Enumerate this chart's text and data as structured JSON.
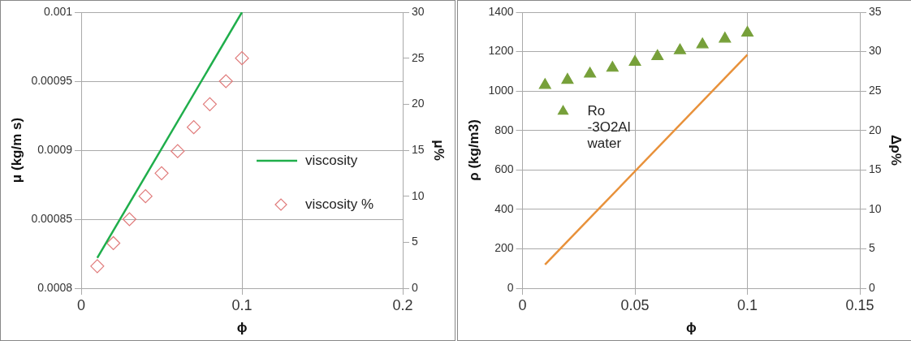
{
  "chart_data": [
    {
      "type": "scatter",
      "xlabel": "ϕ",
      "ylabel": "μ (kg/m s)",
      "y2label": "μ%",
      "xlim": [
        0,
        0.2
      ],
      "xticks": [
        0,
        0.1,
        0.2
      ],
      "ylim": [
        0.0008,
        0.001
      ],
      "yticks": [
        0.0008,
        0.00085,
        0.0009,
        0.00095,
        0.001
      ],
      "y2lim": [
        0,
        30
      ],
      "y2ticks": [
        0,
        5,
        10,
        15,
        20,
        25,
        30
      ],
      "grid": true,
      "legend": "right",
      "series": [
        {
          "name": "viscosity",
          "type": "line",
          "color": "#1fae4b",
          "marker": "none",
          "x": [
            0.01,
            0.1
          ],
          "values": [
            0.000822,
            0.001
          ]
        },
        {
          "name": "viscosity %",
          "type": "scatter",
          "color": "#e07a7a",
          "marker": "diamond",
          "axis": "y2",
          "x": [
            0.01,
            0.02,
            0.03,
            0.04,
            0.05,
            0.06,
            0.07,
            0.08,
            0.09,
            0.1
          ],
          "values": [
            2.4,
            4.9,
            7.5,
            10,
            12.5,
            14.9,
            17.5,
            20,
            22.5,
            25
          ]
        }
      ]
    },
    {
      "type": "scatter",
      "xlabel": "ϕ",
      "ylabel": "ρ (kg/m3)",
      "y2label": "Δρ%",
      "xlim": [
        0,
        0.15
      ],
      "xticks": [
        0,
        0.05,
        0.1,
        0.15
      ],
      "ylim": [
        0,
        1400
      ],
      "yticks": [
        0,
        200,
        400,
        600,
        800,
        1000,
        1200,
        1400
      ],
      "y2lim": [
        0,
        35
      ],
      "y2ticks": [
        0,
        5,
        10,
        15,
        20,
        25,
        30,
        35
      ],
      "grid": true,
      "legend": "top left",
      "series": [
        {
          "name": "Ro -3O2Al water",
          "type": "scatter",
          "color": "#77a03a",
          "marker": "triangle",
          "x": [
            0.01,
            0.02,
            0.03,
            0.04,
            0.05,
            0.06,
            0.07,
            0.08,
            0.09,
            0.1
          ],
          "values": [
            1030,
            1056,
            1087,
            1117,
            1147,
            1176,
            1206,
            1236,
            1265,
            1295
          ]
        },
        {
          "type": "line",
          "color": "#e8913a",
          "marker": "none",
          "axis": "y2",
          "x": [
            0.01,
            0.1
          ],
          "values": [
            3,
            29.6
          ]
        }
      ]
    }
  ]
}
